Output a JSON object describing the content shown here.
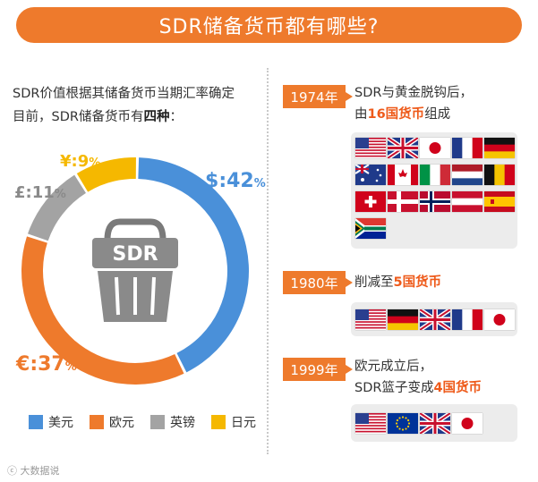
{
  "title": "SDR储备货币都有哪些?",
  "intro": {
    "line1": "SDR价值根据其储备货币当期汇率确定",
    "line2_prefix": "目前，SDR储备货币有",
    "line2_bold": "四种",
    "line2_suffix": "："
  },
  "basket_text": "SDR",
  "chart_data": {
    "type": "pie",
    "variant": "donut",
    "title": "",
    "slices": [
      {
        "name": "美元",
        "symbol": "$",
        "value": 42,
        "color": "#4a90d9"
      },
      {
        "name": "欧元",
        "symbol": "€",
        "value": 37,
        "color": "#ee7a2c"
      },
      {
        "name": "英镑",
        "symbol": "£",
        "value": 11,
        "color": "#a3a3a3"
      },
      {
        "name": "日元",
        "symbol": "¥",
        "value": 9,
        "color": "#f5b800"
      }
    ],
    "legend_position": "bottom"
  },
  "timeline": [
    {
      "year": "1974年",
      "text_line1": "SDR与黄金脱钩后，",
      "text_line2_prefix": "由",
      "text_line2_highlight": "16国货币",
      "text_line2_suffix": "组成",
      "flags": [
        "us",
        "uk",
        "jp",
        "fr",
        "de",
        "au",
        "ca",
        "it",
        "nl",
        "be",
        "ch",
        "dk",
        "no",
        "at",
        "es",
        "za"
      ]
    },
    {
      "year": "1980年",
      "text_line1_prefix": "削减至",
      "text_line1_highlight": "5国货币",
      "flags": [
        "us",
        "de",
        "uk",
        "fr",
        "jp"
      ]
    },
    {
      "year": "1999年",
      "text_line1": "欧元成立后，",
      "text_line2_prefix": "SDR篮子变成",
      "text_line2_highlight": "4国货币",
      "flags": [
        "us",
        "eu",
        "uk",
        "jp"
      ]
    }
  ],
  "watermark": "大数据说",
  "colors": {
    "accent": "#ee7a2c",
    "highlight": "#ee5a1a"
  }
}
